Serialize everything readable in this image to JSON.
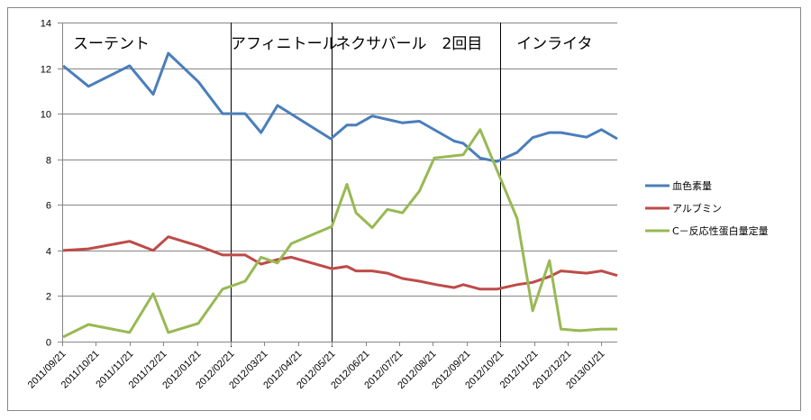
{
  "chart_data": {
    "type": "line",
    "title": "",
    "xlabel": "",
    "ylabel": "",
    "ylim": [
      0,
      14
    ],
    "yticks": [
      0,
      2,
      4,
      6,
      8,
      10,
      12,
      14
    ],
    "x_unit": "months since 2011/09/21",
    "xlim": [
      0,
      16.5
    ],
    "x_tick_labels": [
      "2011/09/21",
      "2011/10/21",
      "2011/11/21",
      "2011/12/21",
      "2012/01/21",
      "2012/02/21",
      "2012/03/21",
      "2012/04/21",
      "2012/05/21",
      "2012/06/21",
      "2012/07/21",
      "2012/08/21",
      "2012/09/21",
      "2012/10/21",
      "2012/11/21",
      "2012/12/21",
      "2013/01/21"
    ],
    "grid": "horizontal",
    "legend_position": "right",
    "phases": [
      {
        "label": "スーテント",
        "start": 0
      },
      {
        "label": "アフィニトール",
        "start": 5
      },
      {
        "label": "ネクサバール　2回目",
        "start": 8
      },
      {
        "label": "インライタ",
        "start": 13
      }
    ],
    "series": [
      {
        "name": "血色素量",
        "color": "#4a7ebb",
        "x": [
          0.03,
          0.78,
          2.0,
          2.7,
          3.15,
          4.04,
          4.76,
          5.43,
          5.9,
          6.39,
          7.97,
          8.45,
          8.72,
          9.2,
          9.65,
          10.1,
          10.6,
          11.63,
          11.9,
          12.4,
          12.9,
          13.5,
          13.96,
          14.46,
          14.8,
          15.56,
          16.0,
          16.47
        ],
        "values": [
          12.1,
          11.2,
          12.1,
          10.85,
          12.65,
          11.4,
          10.0,
          10.0,
          9.17,
          10.36,
          8.9,
          9.5,
          9.5,
          9.9,
          9.75,
          9.6,
          9.67,
          8.8,
          8.7,
          8.05,
          7.9,
          8.3,
          8.95,
          9.17,
          9.17,
          8.97,
          9.3,
          8.9
        ]
      },
      {
        "name": "アルブミン",
        "color": "#be4b48",
        "x": [
          0.03,
          0.78,
          2.0,
          2.7,
          3.15,
          4.04,
          4.76,
          5.43,
          5.9,
          6.39,
          6.8,
          8.0,
          8.45,
          8.72,
          9.2,
          9.65,
          10.1,
          10.6,
          11.1,
          11.63,
          11.9,
          12.4,
          12.9,
          13.5,
          13.96,
          14.46,
          14.8,
          15.56,
          16.0,
          16.47
        ],
        "values": [
          4.0,
          4.07,
          4.4,
          4.0,
          4.6,
          4.2,
          3.8,
          3.8,
          3.4,
          3.6,
          3.7,
          3.2,
          3.3,
          3.1,
          3.1,
          3.0,
          2.77,
          2.65,
          2.5,
          2.37,
          2.5,
          2.3,
          2.3,
          2.5,
          2.6,
          2.85,
          3.1,
          3.0,
          3.1,
          2.9
        ]
      },
      {
        "name": "C－反応性蛋白量定量",
        "color": "#98b954",
        "x": [
          0.03,
          0.78,
          2.0,
          2.7,
          3.15,
          4.04,
          4.76,
          5.43,
          5.9,
          6.39,
          6.8,
          8.0,
          8.45,
          8.72,
          9.2,
          9.65,
          10.1,
          10.6,
          11.04,
          11.9,
          12.4,
          13.5,
          13.96,
          14.46,
          14.8,
          15.35,
          16.0,
          16.47
        ],
        "values": [
          0.2,
          0.75,
          0.4,
          2.1,
          0.4,
          0.8,
          2.3,
          2.65,
          3.7,
          3.45,
          4.3,
          5.05,
          6.9,
          5.65,
          5.0,
          5.8,
          5.65,
          6.6,
          8.05,
          8.2,
          9.3,
          5.4,
          1.35,
          3.55,
          0.55,
          0.48,
          0.55,
          0.55
        ]
      }
    ]
  }
}
